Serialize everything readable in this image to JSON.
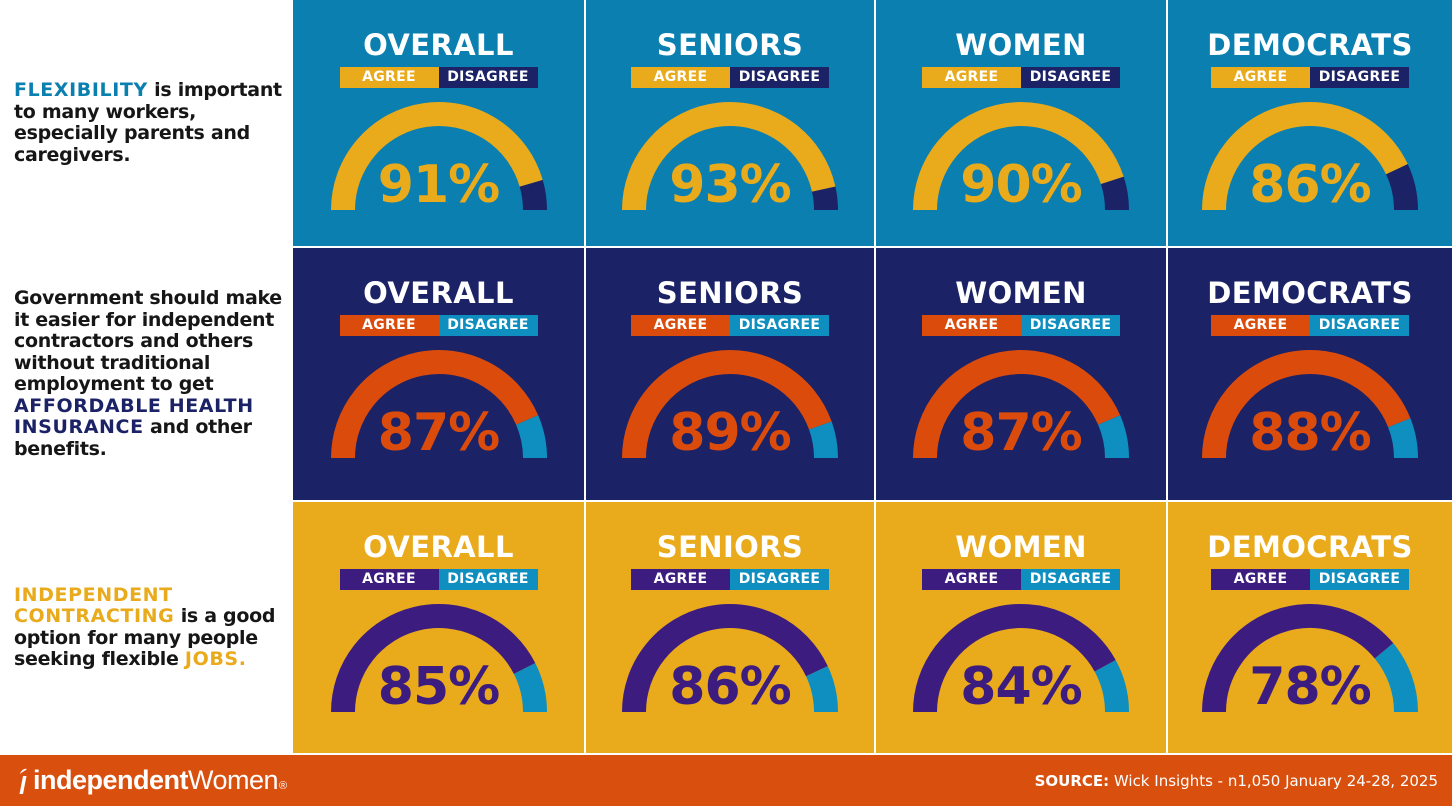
{
  "colors": {
    "light_blue": "#0a7fb0",
    "navy": "#1b2266",
    "mustard": "#e9aa1b",
    "orange": "#db4c0c",
    "purple": "#3d1c80",
    "teal": "#0f8fc0",
    "footer": "#d94f0e"
  },
  "rows": [
    {
      "statement": [
        {
          "text": "FLEXIBILITY",
          "highlight": true,
          "color": "#0a7fb0"
        },
        {
          "text": " is important to many workers, especially parents and caregivers.",
          "highlight": false
        }
      ]
    },
    {
      "statement": [
        {
          "text": "Government should make it easier for independent contractors and others without traditional employment to get ",
          "highlight": false
        },
        {
          "text": "AFFORDABLE HEALTH INSURANCE",
          "highlight": true,
          "color": "#1b2266"
        },
        {
          "text": " and other benefits.",
          "highlight": false
        }
      ]
    },
    {
      "statement": [
        {
          "text": "INDEPENDENT CONTRACTING",
          "highlight": true,
          "color": "#e9aa1b"
        },
        {
          "text": " is a good option for many people seeking flexible ",
          "highlight": false
        },
        {
          "text": "JOBS.",
          "highlight": true,
          "color": "#e9aa1b"
        }
      ]
    }
  ],
  "legend": {
    "agree": "AGREE",
    "disagree": "DISAGREE"
  },
  "chart_data": {
    "type": "gauge-grid",
    "row_themes": [
      {
        "background": "#0a7fb0",
        "agree_color": "#e9aa1b",
        "disagree_color": "#1b2266",
        "value_color": "#e9aa1b"
      },
      {
        "background": "#1b2266",
        "agree_color": "#db4c0c",
        "disagree_color": "#0f8fc0",
        "value_color": "#db4c0c"
      },
      {
        "background": "#e9aa1b",
        "agree_color": "#3d1c80",
        "disagree_color": "#0f8fc0",
        "value_color": "#3d1c80"
      }
    ],
    "groups": [
      "OVERALL",
      "SENIORS",
      "WOMEN",
      "DEMOCRATS"
    ],
    "series": [
      {
        "name": "Flexibility is important",
        "agree": [
          91,
          93,
          90,
          86
        ],
        "labels": [
          "91%",
          "93%",
          "90%",
          "86%"
        ]
      },
      {
        "name": "Affordable health insurance",
        "agree": [
          87,
          89,
          87,
          88
        ],
        "labels": [
          "87%",
          "89%",
          "87%",
          "88%"
        ]
      },
      {
        "name": "Independent contracting is a good option",
        "agree": [
          85,
          86,
          84,
          78
        ],
        "labels": [
          "85%",
          "86%",
          "84%",
          "78%"
        ]
      }
    ],
    "units": "percent agree",
    "value_range": [
      0,
      100
    ]
  },
  "footer": {
    "brand_first": "independent",
    "brand_second": "Women",
    "brand_reg": "®",
    "source_label": "SOURCE:",
    "source_text": " Wick Insights - n1,050 January 24-28, 2025"
  }
}
